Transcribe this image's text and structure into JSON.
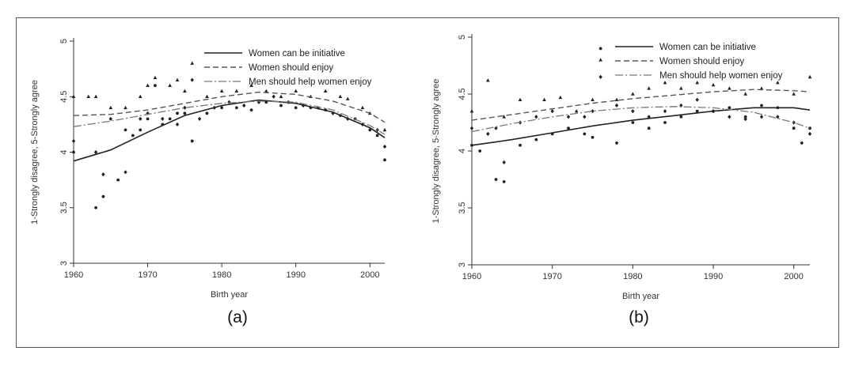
{
  "chart_data": [
    {
      "panel": "(a)",
      "type": "scatter",
      "xlabel": "Birth year",
      "ylabel": "1-Strongly disagree, 5-Strongly agree",
      "xlim": [
        1960,
        2002
      ],
      "ylim": [
        3,
        5
      ],
      "xticks": [
        "1960",
        "1970",
        "1980",
        "1990",
        "2000"
      ],
      "yticks": [
        "3",
        "3.5",
        "4",
        "4.5",
        "5"
      ],
      "legend": [
        "Women can be initiative",
        "Women should enjoy",
        "Men should help women enjoy"
      ],
      "legend_position": "top-right",
      "series": [
        {
          "name": "Women can be initiative",
          "marker": "circle",
          "line_style": "solid",
          "fit": [
            [
              1960,
              3.92
            ],
            [
              1965,
              4.02
            ],
            [
              1970,
              4.18
            ],
            [
              1975,
              4.33
            ],
            [
              1980,
              4.42
            ],
            [
              1985,
              4.47
            ],
            [
              1990,
              4.44
            ],
            [
              1995,
              4.36
            ],
            [
              2000,
              4.22
            ],
            [
              2002,
              4.13
            ]
          ],
          "points": [
            [
              1960,
              4.0
            ],
            [
              1963,
              3.5
            ],
            [
              1964,
              3.6
            ],
            [
              1966,
              3.75
            ],
            [
              1967,
              4.2
            ],
            [
              1968,
              4.15
            ],
            [
              1969,
              4.2
            ],
            [
              1970,
              4.3
            ],
            [
              1971,
              4.6
            ],
            [
              1972,
              4.25
            ],
            [
              1973,
              4.3
            ],
            [
              1974,
              4.35
            ],
            [
              1975,
              4.35
            ],
            [
              1976,
              4.1
            ],
            [
              1978,
              4.35
            ],
            [
              1980,
              4.4
            ],
            [
              1982,
              4.4
            ],
            [
              1984,
              4.38
            ],
            [
              1986,
              4.45
            ],
            [
              1988,
              4.42
            ],
            [
              1990,
              4.4
            ],
            [
              1992,
              4.4
            ],
            [
              1994,
              4.38
            ],
            [
              1996,
              4.33
            ],
            [
              1998,
              4.3
            ],
            [
              2000,
              4.2
            ],
            [
              2001,
              4.15
            ],
            [
              2002,
              3.93
            ]
          ]
        },
        {
          "name": "Women should enjoy",
          "marker": "triangle",
          "line_style": "dashed",
          "fit": [
            [
              1960,
              4.33
            ],
            [
              1965,
              4.34
            ],
            [
              1970,
              4.38
            ],
            [
              1975,
              4.44
            ],
            [
              1980,
              4.5
            ],
            [
              1985,
              4.54
            ],
            [
              1990,
              4.52
            ],
            [
              1995,
              4.46
            ],
            [
              2000,
              4.35
            ],
            [
              2002,
              4.27
            ]
          ],
          "points": [
            [
              1960,
              4.5
            ],
            [
              1962,
              4.5
            ],
            [
              1963,
              4.5
            ],
            [
              1965,
              4.4
            ],
            [
              1967,
              4.4
            ],
            [
              1969,
              4.5
            ],
            [
              1970,
              4.6
            ],
            [
              1971,
              4.67
            ],
            [
              1973,
              4.6
            ],
            [
              1974,
              4.65
            ],
            [
              1975,
              4.55
            ],
            [
              1976,
              4.8
            ],
            [
              1978,
              4.5
            ],
            [
              1980,
              4.55
            ],
            [
              1982,
              4.55
            ],
            [
              1984,
              4.6
            ],
            [
              1986,
              4.55
            ],
            [
              1988,
              4.5
            ],
            [
              1990,
              4.55
            ],
            [
              1992,
              4.5
            ],
            [
              1994,
              4.55
            ],
            [
              1996,
              4.5
            ],
            [
              1997,
              4.48
            ],
            [
              1999,
              4.4
            ],
            [
              2000,
              4.35
            ],
            [
              2002,
              4.2
            ]
          ]
        },
        {
          "name": "Men should help women enjoy",
          "marker": "diamond",
          "line_style": "dash-dot",
          "fit": [
            [
              1960,
              4.23
            ],
            [
              1965,
              4.28
            ],
            [
              1970,
              4.34
            ],
            [
              1975,
              4.4
            ],
            [
              1980,
              4.44
            ],
            [
              1985,
              4.46
            ],
            [
              1990,
              4.45
            ],
            [
              1995,
              4.38
            ],
            [
              2000,
              4.24
            ],
            [
              2002,
              4.16
            ]
          ],
          "points": [
            [
              1960,
              4.1
            ],
            [
              1963,
              4.0
            ],
            [
              1964,
              3.8
            ],
            [
              1965,
              4.3
            ],
            [
              1967,
              3.82
            ],
            [
              1969,
              4.3
            ],
            [
              1970,
              4.35
            ],
            [
              1972,
              4.3
            ],
            [
              1974,
              4.25
            ],
            [
              1975,
              4.4
            ],
            [
              1976,
              4.65
            ],
            [
              1977,
              4.3
            ],
            [
              1979,
              4.4
            ],
            [
              1981,
              4.45
            ],
            [
              1983,
              4.42
            ],
            [
              1985,
              4.45
            ],
            [
              1987,
              4.5
            ],
            [
              1989,
              4.45
            ],
            [
              1991,
              4.42
            ],
            [
              1993,
              4.4
            ],
            [
              1995,
              4.35
            ],
            [
              1997,
              4.3
            ],
            [
              1999,
              4.25
            ],
            [
              2001,
              4.2
            ],
            [
              2002,
              4.05
            ]
          ]
        }
      ]
    },
    {
      "panel": "(b)",
      "type": "scatter",
      "xlabel": "Birth year",
      "ylabel": "1-Strongly disagree, 5-Strongly agree",
      "xlim": [
        1960,
        2002
      ],
      "ylim": [
        3,
        5
      ],
      "xticks": [
        "1960",
        "1970",
        "1980",
        "1990",
        "2000"
      ],
      "yticks": [
        "3",
        "3.5",
        "4",
        "4.5",
        "5"
      ],
      "legend": [
        "Women can be initiative",
        "Women should enjoy",
        "Men should help women enjoy"
      ],
      "legend_position": "top-right",
      "series": [
        {
          "name": "Women can be initiative",
          "marker": "circle",
          "line_style": "solid",
          "fit": [
            [
              1960,
              4.05
            ],
            [
              1965,
              4.1
            ],
            [
              1970,
              4.16
            ],
            [
              1975,
              4.22
            ],
            [
              1980,
              4.27
            ],
            [
              1985,
              4.31
            ],
            [
              1990,
              4.35
            ],
            [
              1995,
              4.38
            ],
            [
              2000,
              4.38
            ],
            [
              2002,
              4.36
            ]
          ],
          "points": [
            [
              1960,
              4.05
            ],
            [
              1961,
              4.0
            ],
            [
              1963,
              3.75
            ],
            [
              1964,
              3.73
            ],
            [
              1966,
              4.05
            ],
            [
              1968,
              4.1
            ],
            [
              1970,
              4.15
            ],
            [
              1972,
              4.2
            ],
            [
              1974,
              4.15
            ],
            [
              1975,
              4.12
            ],
            [
              1976,
              4.9
            ],
            [
              1978,
              4.07
            ],
            [
              1980,
              4.25
            ],
            [
              1982,
              4.2
            ],
            [
              1984,
              4.25
            ],
            [
              1986,
              4.3
            ],
            [
              1988,
              4.35
            ],
            [
              1990,
              4.35
            ],
            [
              1992,
              4.38
            ],
            [
              1994,
              4.3
            ],
            [
              1996,
              4.4
            ],
            [
              1998,
              4.38
            ],
            [
              2000,
              4.2
            ],
            [
              2001,
              4.07
            ],
            [
              2002,
              4.2
            ]
          ]
        },
        {
          "name": "Women should enjoy",
          "marker": "triangle",
          "line_style": "dashed",
          "fit": [
            [
              1960,
              4.27
            ],
            [
              1965,
              4.32
            ],
            [
              1970,
              4.37
            ],
            [
              1975,
              4.42
            ],
            [
              1980,
              4.46
            ],
            [
              1985,
              4.49
            ],
            [
              1990,
              4.52
            ],
            [
              1995,
              4.54
            ],
            [
              2000,
              4.53
            ],
            [
              2002,
              4.52
            ]
          ],
          "points": [
            [
              1960,
              4.35
            ],
            [
              1962,
              4.62
            ],
            [
              1964,
              4.3
            ],
            [
              1966,
              4.45
            ],
            [
              1969,
              4.45
            ],
            [
              1971,
              4.47
            ],
            [
              1973,
              4.35
            ],
            [
              1975,
              4.45
            ],
            [
              1976,
              4.8
            ],
            [
              1978,
              4.45
            ],
            [
              1980,
              4.5
            ],
            [
              1982,
              4.55
            ],
            [
              1984,
              4.6
            ],
            [
              1986,
              4.55
            ],
            [
              1988,
              4.6
            ],
            [
              1990,
              4.58
            ],
            [
              1992,
              4.55
            ],
            [
              1994,
              4.5
            ],
            [
              1996,
              4.55
            ],
            [
              1998,
              4.6
            ],
            [
              2000,
              4.5
            ],
            [
              2002,
              4.65
            ]
          ]
        },
        {
          "name": "Men should help women enjoy",
          "marker": "diamond",
          "line_style": "dash-dot",
          "fit": [
            [
              1960,
              4.17
            ],
            [
              1965,
              4.24
            ],
            [
              1970,
              4.3
            ],
            [
              1975,
              4.35
            ],
            [
              1980,
              4.38
            ],
            [
              1985,
              4.39
            ],
            [
              1990,
              4.38
            ],
            [
              1995,
              4.34
            ],
            [
              2000,
              4.25
            ],
            [
              2002,
              4.2
            ]
          ],
          "points": [
            [
              1960,
              4.2
            ],
            [
              1962,
              4.15
            ],
            [
              1963,
              4.2
            ],
            [
              1964,
              3.9
            ],
            [
              1966,
              4.25
            ],
            [
              1968,
              4.3
            ],
            [
              1970,
              4.35
            ],
            [
              1972,
              4.3
            ],
            [
              1974,
              4.3
            ],
            [
              1975,
              4.35
            ],
            [
              1976,
              4.65
            ],
            [
              1978,
              4.4
            ],
            [
              1980,
              4.35
            ],
            [
              1982,
              4.3
            ],
            [
              1984,
              4.35
            ],
            [
              1986,
              4.4
            ],
            [
              1988,
              4.45
            ],
            [
              1990,
              4.35
            ],
            [
              1992,
              4.3
            ],
            [
              1994,
              4.28
            ],
            [
              1996,
              4.3
            ],
            [
              1998,
              4.3
            ],
            [
              2000,
              4.25
            ],
            [
              2002,
              4.15
            ]
          ]
        }
      ]
    }
  ]
}
